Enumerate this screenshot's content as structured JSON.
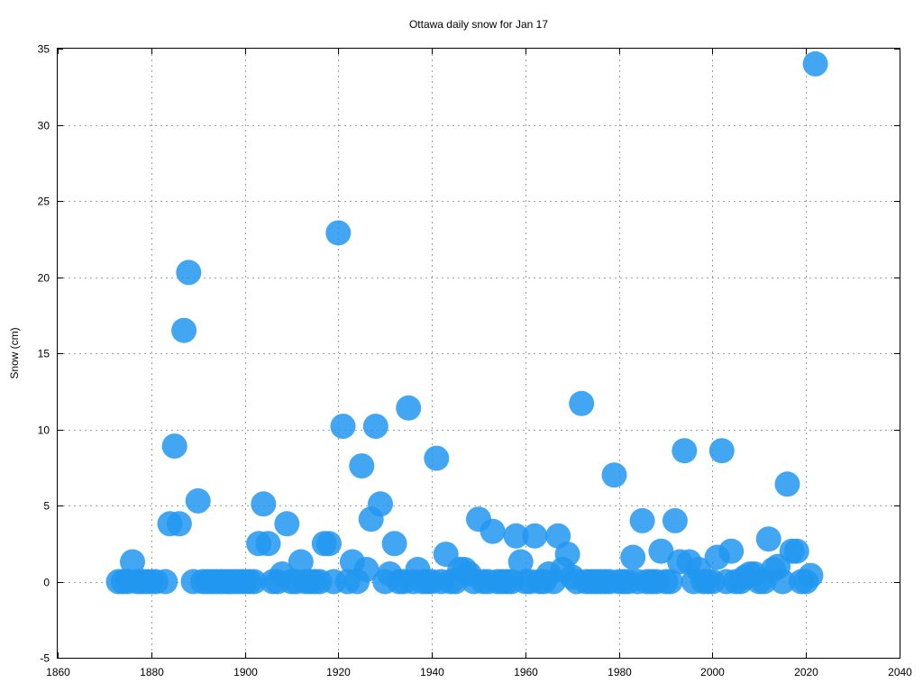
{
  "chart_data": {
    "type": "scatter",
    "title": "Ottawa daily snow for Jan 17",
    "xlabel": "",
    "ylabel": "Snow (cm)",
    "xlim": [
      1860,
      2040
    ],
    "ylim": [
      -5,
      35
    ],
    "xticks": [
      1860,
      1880,
      1900,
      1920,
      1940,
      1960,
      1980,
      2000,
      2020,
      2040
    ],
    "yticks": [
      -5,
      0,
      5,
      10,
      15,
      20,
      25,
      30,
      35
    ],
    "grid": true,
    "marker_color": "#2196f0",
    "points": [
      [
        1873,
        0
      ],
      [
        1874,
        0
      ],
      [
        1875,
        0
      ],
      [
        1876,
        1.3
      ],
      [
        1877,
        0
      ],
      [
        1878,
        0
      ],
      [
        1879,
        0
      ],
      [
        1880,
        0
      ],
      [
        1881,
        0
      ],
      [
        1883,
        0
      ],
      [
        1884,
        3.8
      ],
      [
        1885,
        8.9
      ],
      [
        1886,
        3.8
      ],
      [
        1887,
        16.5
      ],
      [
        1888,
        20.3
      ],
      [
        1889,
        0
      ],
      [
        1890,
        5.3
      ],
      [
        1891,
        0
      ],
      [
        1892,
        0
      ],
      [
        1893,
        0
      ],
      [
        1894,
        0
      ],
      [
        1895,
        0
      ],
      [
        1896,
        0
      ],
      [
        1897,
        0
      ],
      [
        1898,
        0
      ],
      [
        1899,
        0
      ],
      [
        1900,
        0
      ],
      [
        1901,
        0
      ],
      [
        1902,
        0
      ],
      [
        1903,
        2.5
      ],
      [
        1904,
        5.1
      ],
      [
        1905,
        2.5
      ],
      [
        1906,
        0
      ],
      [
        1907,
        0
      ],
      [
        1908,
        0.5
      ],
      [
        1909,
        3.8
      ],
      [
        1910,
        0
      ],
      [
        1911,
        0
      ],
      [
        1912,
        1.3
      ],
      [
        1913,
        0
      ],
      [
        1914,
        0
      ],
      [
        1915,
        0
      ],
      [
        1916,
        0
      ],
      [
        1917,
        2.5
      ],
      [
        1918,
        2.5
      ],
      [
        1919,
        0
      ],
      [
        1920,
        22.9
      ],
      [
        1921,
        10.2
      ],
      [
        1922,
        0
      ],
      [
        1923,
        1.3
      ],
      [
        1924,
        0
      ],
      [
        1925,
        7.6
      ],
      [
        1926,
        0.8
      ],
      [
        1927,
        4.1
      ],
      [
        1928,
        10.2
      ],
      [
        1929,
        5.1
      ],
      [
        1930,
        0
      ],
      [
        1931,
        0.5
      ],
      [
        1932,
        2.5
      ],
      [
        1933,
        0
      ],
      [
        1934,
        0
      ],
      [
        1935,
        11.4
      ],
      [
        1936,
        0
      ],
      [
        1937,
        0.8
      ],
      [
        1938,
        0
      ],
      [
        1939,
        0
      ],
      [
        1940,
        0
      ],
      [
        1941,
        8.1
      ],
      [
        1942,
        0
      ],
      [
        1943,
        1.8
      ],
      [
        1944,
        0
      ],
      [
        1945,
        0
      ],
      [
        1946,
        0.8
      ],
      [
        1947,
        0.8
      ],
      [
        1948,
        0.5
      ],
      [
        1949,
        0
      ],
      [
        1950,
        4.1
      ],
      [
        1951,
        0
      ],
      [
        1952,
        0
      ],
      [
        1953,
        3.3
      ],
      [
        1954,
        0
      ],
      [
        1955,
        0
      ],
      [
        1956,
        0
      ],
      [
        1957,
        0
      ],
      [
        1958,
        3.0
      ],
      [
        1959,
        1.3
      ],
      [
        1960,
        0
      ],
      [
        1961,
        0
      ],
      [
        1962,
        3.0
      ],
      [
        1963,
        0
      ],
      [
        1964,
        0
      ],
      [
        1965,
        0.5
      ],
      [
        1966,
        0
      ],
      [
        1967,
        3.0
      ],
      [
        1968,
        0.8
      ],
      [
        1969,
        1.8
      ],
      [
        1970,
        0.3
      ],
      [
        1971,
        0
      ],
      [
        1972,
        11.7
      ],
      [
        1973,
        0
      ],
      [
        1974,
        0
      ],
      [
        1975,
        0
      ],
      [
        1976,
        0
      ],
      [
        1977,
        0
      ],
      [
        1978,
        0
      ],
      [
        1979,
        7.0
      ],
      [
        1980,
        0
      ],
      [
        1981,
        0
      ],
      [
        1982,
        0
      ],
      [
        1983,
        1.6
      ],
      [
        1984,
        0
      ],
      [
        1985,
        4.0
      ],
      [
        1986,
        0
      ],
      [
        1987,
        0
      ],
      [
        1988,
        0
      ],
      [
        1989,
        2.0
      ],
      [
        1990,
        0
      ],
      [
        1991,
        0
      ],
      [
        1992,
        4.0
      ],
      [
        1993,
        1.3
      ],
      [
        1994,
        8.6
      ],
      [
        1995,
        1.3
      ],
      [
        1996,
        0
      ],
      [
        1997,
        0.8
      ],
      [
        1998,
        0
      ],
      [
        1999,
        0
      ],
      [
        2000,
        0
      ],
      [
        2001,
        1.6
      ],
      [
        2002,
        8.6
      ],
      [
        2003,
        0
      ],
      [
        2004,
        2.0
      ],
      [
        2005,
        0
      ],
      [
        2006,
        0
      ],
      [
        2007,
        0.3
      ],
      [
        2008,
        0.5
      ],
      [
        2009,
        0.5
      ],
      [
        2010,
        0
      ],
      [
        2011,
        0
      ],
      [
        2012,
        2.8
      ],
      [
        2013,
        0.8
      ],
      [
        2014,
        1.0
      ],
      [
        2015,
        0
      ],
      [
        2016,
        6.4
      ],
      [
        2017,
        2.0
      ],
      [
        2018,
        2.0
      ],
      [
        2019,
        0
      ],
      [
        2020,
        0
      ],
      [
        2021,
        0.4
      ],
      [
        2022,
        34.0
      ]
    ]
  }
}
